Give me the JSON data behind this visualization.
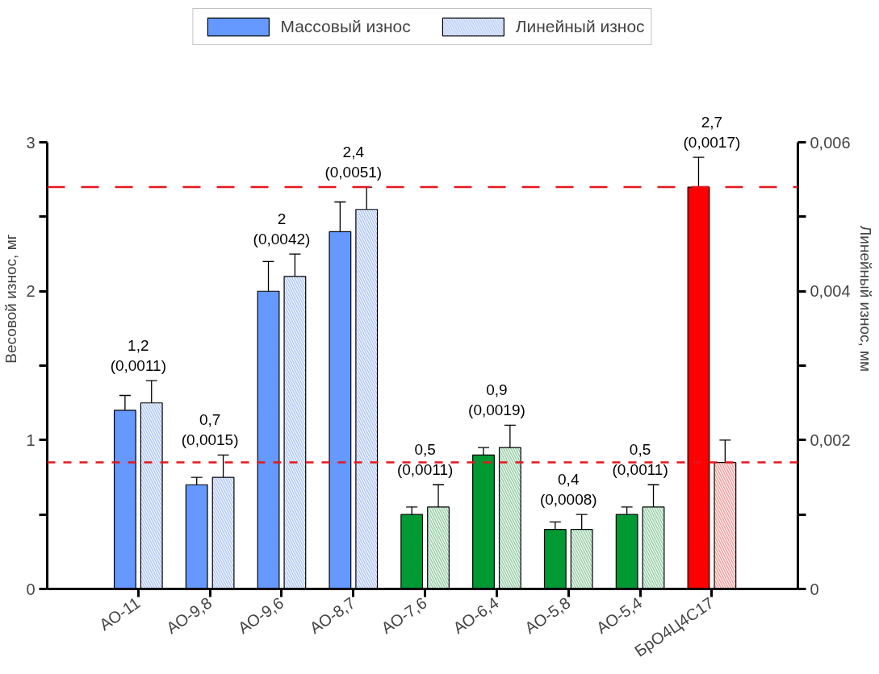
{
  "chart_data": {
    "type": "bar",
    "categories": [
      "АО-11",
      "АО-9,8",
      "АО-9,6",
      "АО-8,7",
      "АО-7,6",
      "АО-6,4",
      "АО-5,8",
      "АО-5,4",
      "БрО4Ц4С17"
    ],
    "ylabel": "Весовой износ, мг",
    "y2label": "Линейный износ, мм",
    "series": [
      {
        "name": "Массовый износ",
        "colors": [
          "#6699ff",
          "#6699ff",
          "#6699ff",
          "#6699ff",
          "#009933",
          "#009933",
          "#009933",
          "#009933",
          "#ff0000"
        ],
        "values": [
          1.2,
          0.7,
          2.0,
          2.4,
          0.5,
          0.9,
          0.4,
          0.5,
          2.7
        ],
        "errors": [
          0.1,
          0.05,
          0.2,
          0.2,
          0.05,
          0.05,
          0.05,
          0.05,
          0.2
        ]
      },
      {
        "name": "Линейный износ",
        "axis": "y2",
        "colors": [
          "#b9cdf5",
          "#b9cdf5",
          "#b9cdf5",
          "#b9cdf5",
          "#a3d4b0",
          "#a3d4b0",
          "#a3d4b0",
          "#a3d4b0",
          "#f2a8a8"
        ],
        "values": [
          0.0025,
          0.0015,
          0.0042,
          0.0051,
          0.0011,
          0.0019,
          0.0008,
          0.0011,
          0.0017
        ],
        "errors": [
          0.0003,
          0.0003,
          0.0003,
          0.0003,
          0.0003,
          0.0003,
          0.0002,
          0.0003,
          0.0003
        ]
      }
    ],
    "ylim": [
      0,
      3
    ],
    "yticks": [
      0,
      {
        "value": 0.5,
        "label": null
      },
      1,
      {
        "value": 1.5,
        "label": null
      },
      2,
      {
        "value": 2.5,
        "label": null
      },
      3
    ],
    "y2lim": [
      0,
      0.006
    ],
    "y2ticks": [
      0,
      {
        "value": 0.001,
        "label": null
      },
      {
        "value": 0.002,
        "label": "0,002"
      },
      {
        "value": 0.003,
        "label": null
      },
      {
        "value": 0.004,
        "label": "0,004"
      },
      {
        "value": 0.005,
        "label": null
      },
      {
        "value": 0.006,
        "label": "0,006"
      }
    ],
    "ref_lines": [
      {
        "axis": "y",
        "value": 2.7,
        "color": "#e8141c",
        "line_style": "dashed"
      },
      {
        "axis": "y2",
        "value": 0.0017,
        "color": "#e8141c",
        "line_style": "dashed"
      }
    ],
    "annotations": [
      "1,2\n(0,0011)",
      "0,7\n(0,0015)",
      "2\n(0,0042)",
      "2,4\n(0,0051)",
      "0,5\n(0,0011)",
      "0,9\n(0,0019)",
      "0,4\n(0,0008)",
      "0,5\n(0,0011)",
      "2,7\n(0,0017)"
    ],
    "grid": false,
    "legend": "top"
  }
}
